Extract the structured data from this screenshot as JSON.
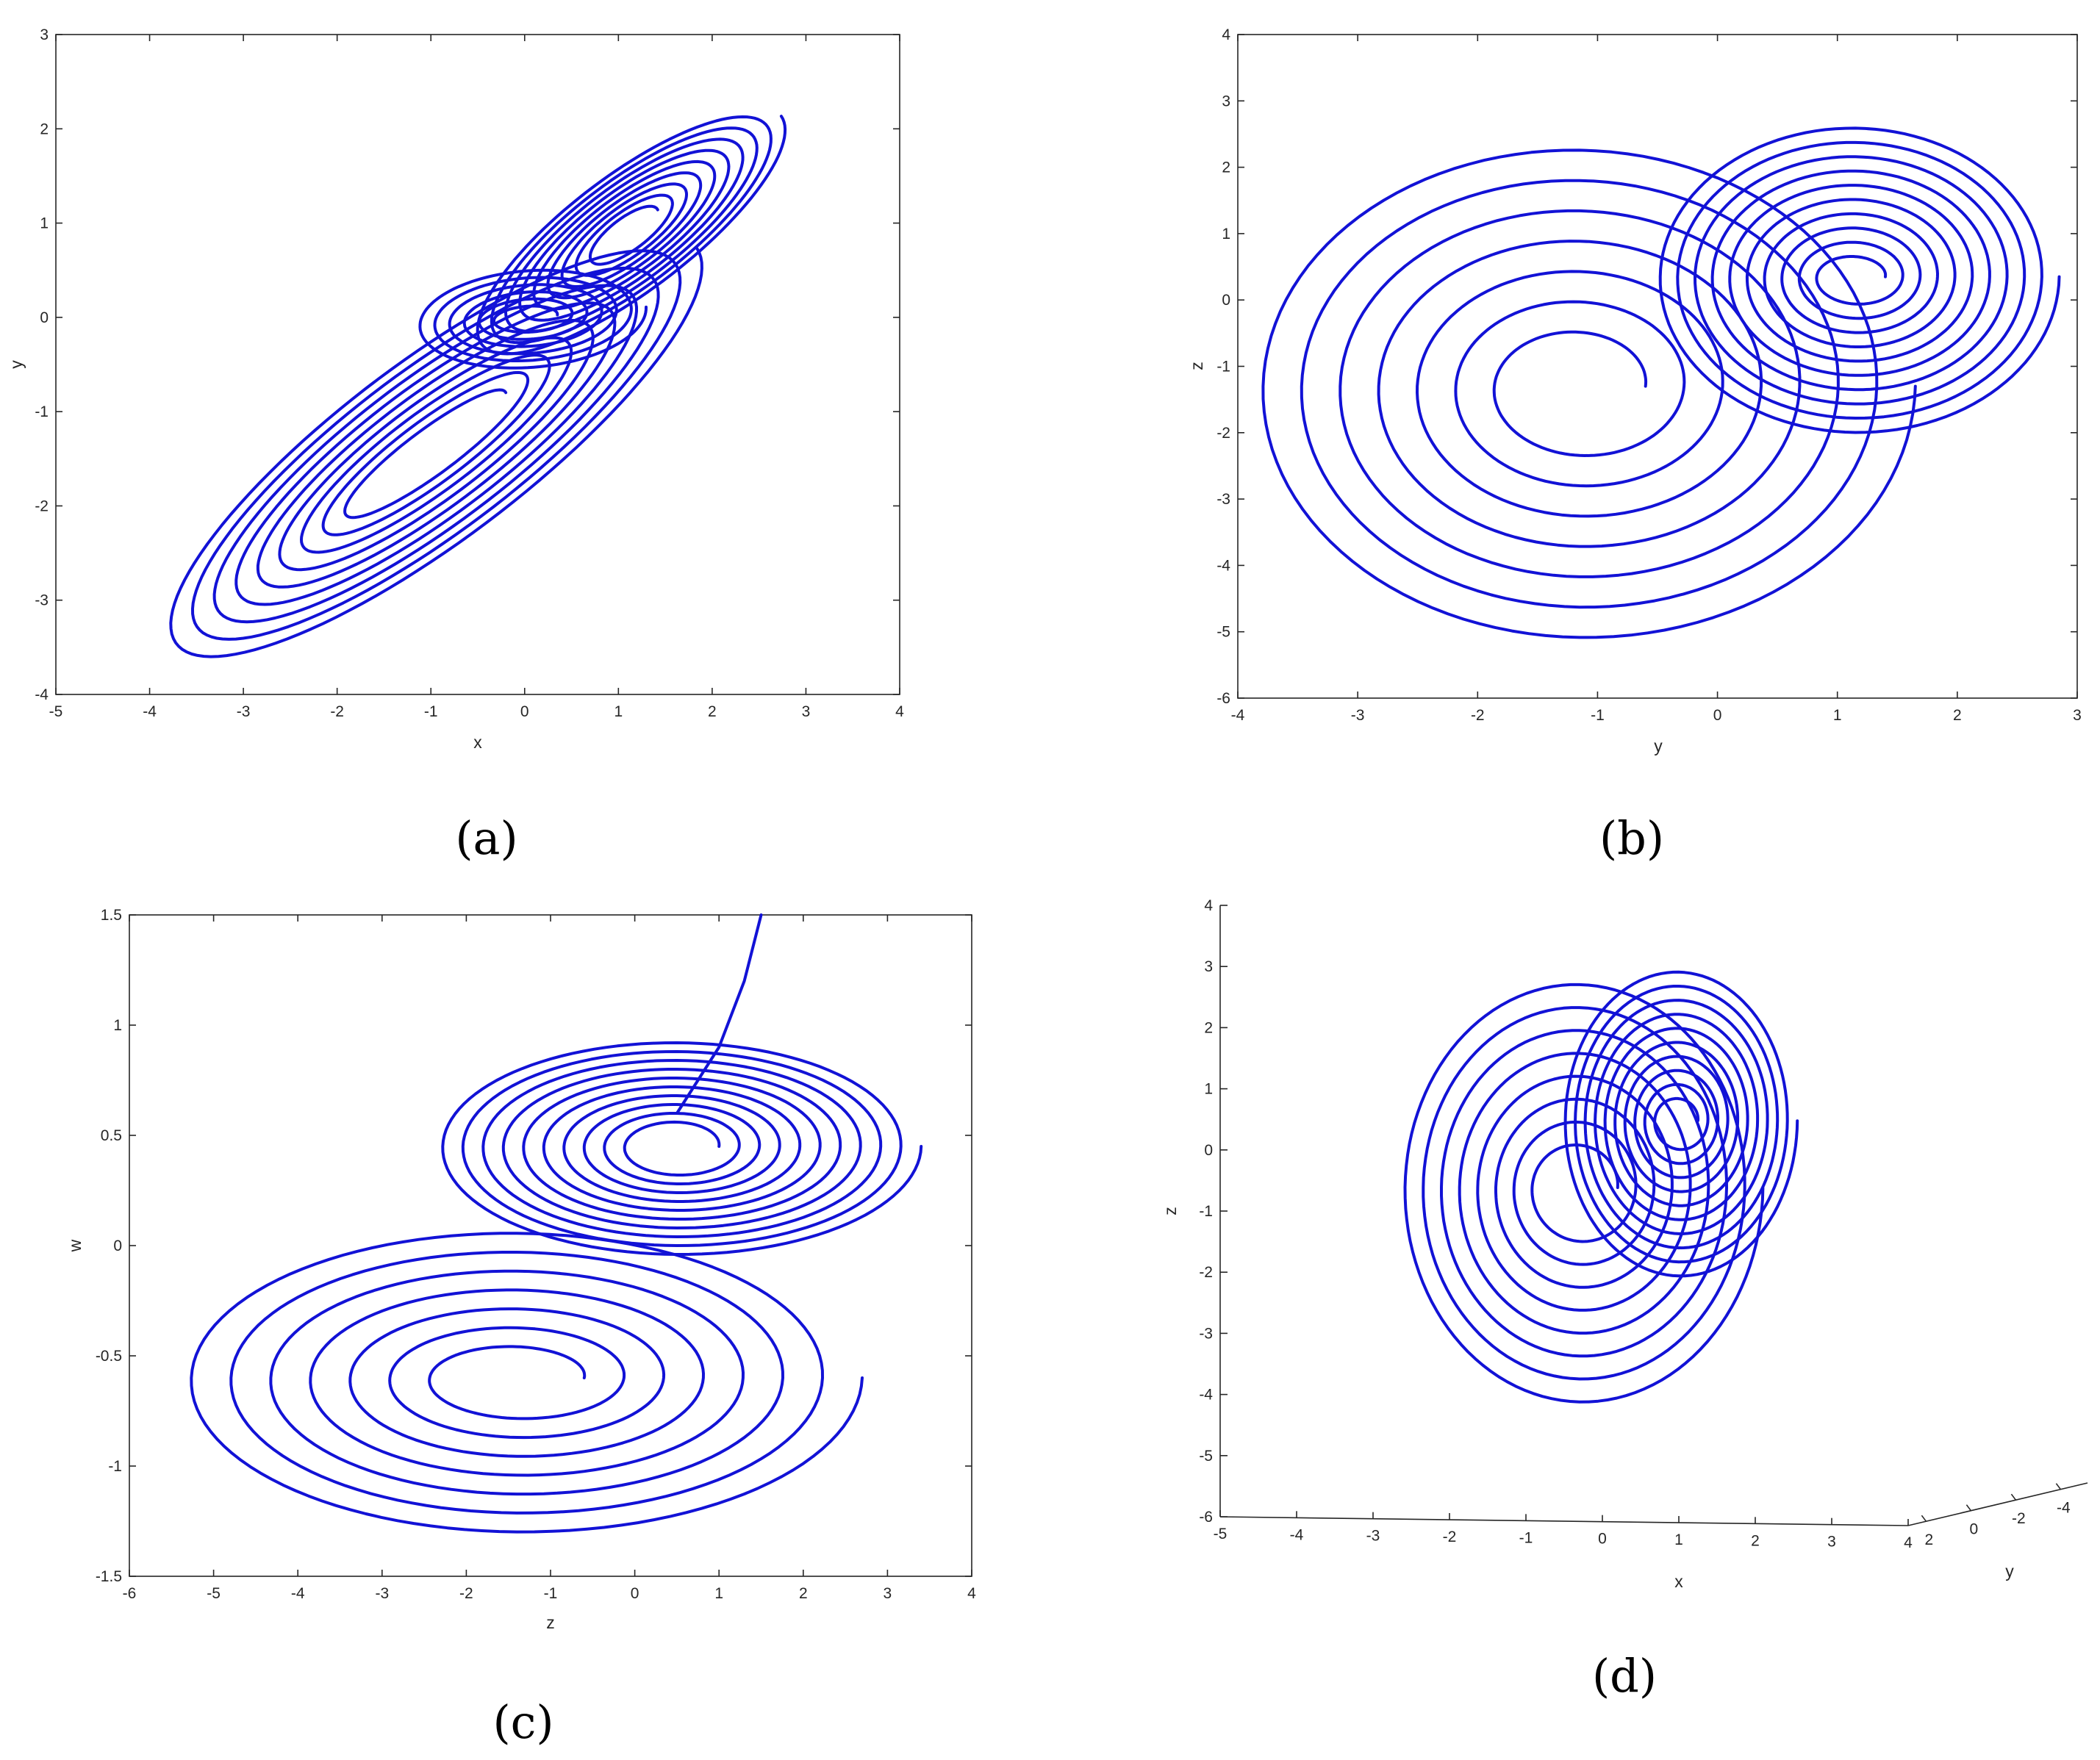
{
  "figure": {
    "trace_color": "#1212d6",
    "axis_color": "#262626"
  },
  "chart_data": [
    {
      "type": "line",
      "panel_label": "(a)",
      "xlabel": "x",
      "ylabel": "y",
      "xlim": [
        -5,
        4
      ],
      "ylim": [
        -4,
        3
      ],
      "x_ticks": [
        "-5",
        "-4",
        "-3",
        "-2",
        "-1",
        "0",
        "1",
        "2",
        "3",
        "4"
      ],
      "y_ticks": [
        "-4",
        "-3",
        "-2",
        "-1",
        "0",
        "1",
        "2",
        "3"
      ],
      "grid": false,
      "series": [
        {
          "kind": "spiral",
          "center": [
            1.1,
            0.9
          ],
          "rx": [
            0.4,
            2.05
          ],
          "ry": [
            0.15,
            0.65
          ],
          "angle_deg": 37,
          "turns": 9
        },
        {
          "kind": "spiral",
          "center": [
            -1.0,
            -1.4
          ],
          "rx": [
            1.0,
            3.55
          ],
          "ry": [
            0.2,
            1.0
          ],
          "angle_deg": 37,
          "turns": 9
        },
        {
          "kind": "spiral",
          "center": [
            0.05,
            0.0
          ],
          "rx": [
            0.3,
            1.25
          ],
          "ry": [
            0.1,
            0.55
          ],
          "angle_deg": 5,
          "turns": 6
        }
      ]
    },
    {
      "type": "line",
      "panel_label": "(b)",
      "xlabel": "y",
      "ylabel": "z",
      "xlim": [
        -4,
        3
      ],
      "ylim": [
        -6,
        4
      ],
      "x_ticks": [
        "-4",
        "-3",
        "-2",
        "-1",
        "0",
        "1",
        "2",
        "3"
      ],
      "y_ticks": [
        "-6",
        "-5",
        "-4",
        "-3",
        "-2",
        "-1",
        "0",
        "1",
        "2",
        "3",
        "4"
      ],
      "grid": false,
      "series": [
        {
          "kind": "spiral",
          "center": [
            1.15,
            0.35
          ],
          "rx": [
            0.25,
            1.7
          ],
          "ry": [
            0.25,
            2.4
          ],
          "angle_deg": 0,
          "turns": 10
        },
        {
          "kind": "spiral",
          "center": [
            -1.15,
            -1.3
          ],
          "rx": [
            0.55,
            2.8
          ],
          "ry": [
            0.7,
            3.9
          ],
          "angle_deg": 0,
          "turns": 7
        }
      ]
    },
    {
      "type": "line",
      "panel_label": "(c)",
      "xlabel": "z",
      "ylabel": "w",
      "xlim": [
        -6,
        4
      ],
      "ylim": [
        -1.5,
        1.5
      ],
      "x_ticks": [
        "-6",
        "-5",
        "-4",
        "-3",
        "-2",
        "-1",
        "0",
        "1",
        "2",
        "3",
        "4"
      ],
      "y_ticks": [
        "-1.5",
        "-1",
        "-0.5",
        "0",
        "0.5",
        "1",
        "1.5"
      ],
      "grid": false,
      "series": [
        {
          "kind": "spiral",
          "center": [
            0.5,
            0.45
          ],
          "rx": [
            0.5,
            2.9
          ],
          "ry": [
            0.1,
            0.5
          ],
          "angle_deg": 0,
          "turns": 10
        },
        {
          "kind": "spiral",
          "center": [
            -1.4,
            -0.6
          ],
          "rx": [
            0.8,
            4.1
          ],
          "ry": [
            0.12,
            0.72
          ],
          "angle_deg": 0,
          "turns": 7
        },
        {
          "kind": "tail",
          "points": [
            [
              0.5,
              0.6
            ],
            [
              1.0,
              0.9
            ],
            [
              1.3,
              1.2
            ],
            [
              1.5,
              1.5
            ]
          ]
        }
      ]
    },
    {
      "type": "line",
      "panel_label": "(d)",
      "xlabel": "x",
      "ylabel": "z",
      "zlabel": "y",
      "x_ticks": [
        "-5",
        "-4",
        "-3",
        "-2",
        "-1",
        "0",
        "1",
        "2",
        "3",
        "4"
      ],
      "z_ticks": [
        "-6",
        "-5",
        "-4",
        "-3",
        "-2",
        "-1",
        "0",
        "1",
        "2",
        "3",
        "4"
      ],
      "y_ticks": [
        "2",
        "0",
        "-2",
        "-4"
      ],
      "zlim": [
        -6,
        4
      ],
      "grid": false,
      "series": [
        {
          "kind": "spiral",
          "center": [
            1.0,
            0.5
          ],
          "rx": [
            0.25,
            1.55
          ],
          "ry": [
            0.3,
            2.6
          ],
          "angle_deg": 0,
          "turns": 10
        },
        {
          "kind": "spiral",
          "center": [
            -0.3,
            -0.6
          ],
          "rx": [
            0.5,
            2.4
          ],
          "ry": [
            0.6,
            3.6
          ],
          "angle_deg": 0,
          "turns": 8
        }
      ]
    }
  ]
}
